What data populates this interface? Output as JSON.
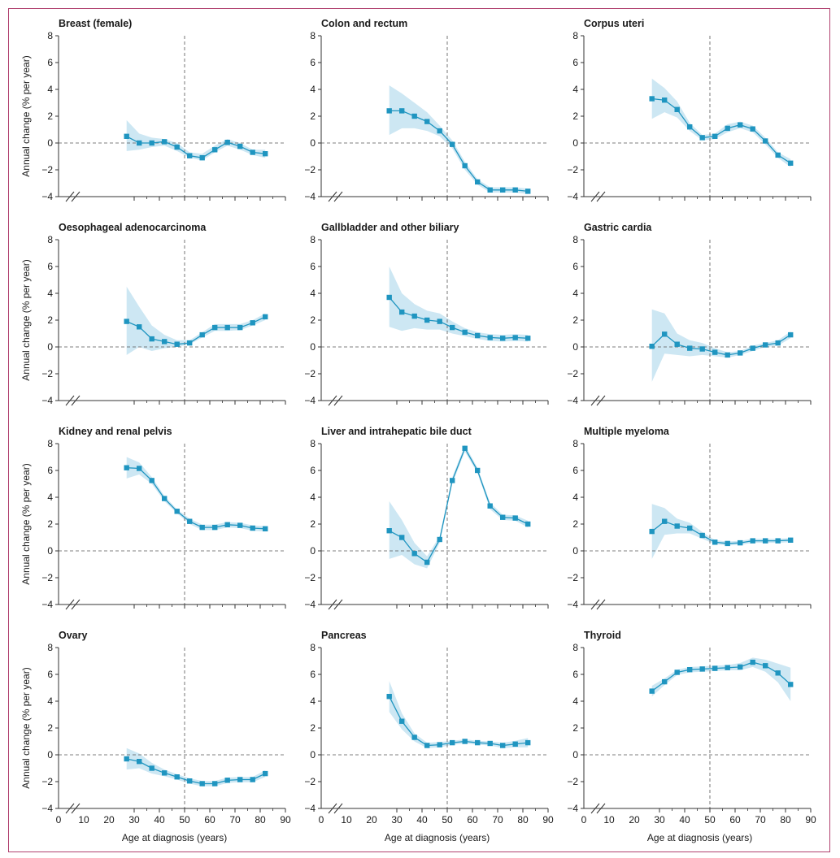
{
  "figure": {
    "x_axis_label": "Age at diagnosis (years)",
    "y_axis_label": "Annual change (% per year)",
    "colors": {
      "line": "#1f95c0",
      "band": "#cde7f3",
      "axis": "#333333",
      "frame": "#b0406e"
    }
  },
  "chart_data": [
    {
      "type": "line",
      "title": "Breast (female)",
      "xlim": [
        0,
        90
      ],
      "ylim": [
        -4,
        8
      ],
      "x": [
        27,
        32,
        37,
        42,
        47,
        52,
        57,
        62,
        67,
        72,
        77,
        82
      ],
      "y": [
        0.5,
        0.0,
        0.0,
        0.1,
        -0.3,
        -0.95,
        -1.1,
        -0.5,
        0.05,
        -0.25,
        -0.7,
        -0.8
      ],
      "lower": [
        -0.6,
        -0.5,
        -0.3,
        -0.2,
        -0.6,
        -1.1,
        -1.3,
        -0.7,
        -0.2,
        -0.5,
        -0.9,
        -1.1
      ],
      "upper": [
        1.7,
        0.7,
        0.4,
        0.3,
        0.0,
        -0.7,
        -0.8,
        -0.2,
        0.3,
        0.0,
        -0.5,
        -0.5
      ]
    },
    {
      "type": "line",
      "title": "Colon and rectum",
      "xlim": [
        0,
        90
      ],
      "ylim": [
        -4,
        8
      ],
      "x": [
        27,
        32,
        37,
        42,
        47,
        52,
        57,
        62,
        67,
        72,
        77,
        82
      ],
      "y": [
        2.4,
        2.4,
        2.0,
        1.6,
        0.9,
        -0.1,
        -1.7,
        -2.9,
        -3.5,
        -3.5,
        -3.5,
        -3.6
      ],
      "lower": [
        0.6,
        1.1,
        1.1,
        0.9,
        0.5,
        -0.4,
        -2.0,
        -3.1,
        -3.7,
        -3.7,
        -3.7,
        -3.8
      ],
      "upper": [
        4.3,
        3.7,
        3.0,
        2.3,
        1.3,
        0.2,
        -1.4,
        -2.7,
        -3.3,
        -3.3,
        -3.3,
        -3.4
      ]
    },
    {
      "type": "line",
      "title": "Corpus uteri",
      "xlim": [
        0,
        90
      ],
      "ylim": [
        -4,
        8
      ],
      "x": [
        27,
        32,
        37,
        42,
        47,
        52,
        57,
        62,
        67,
        72,
        77,
        82
      ],
      "y": [
        3.3,
        3.2,
        2.5,
        1.2,
        0.4,
        0.5,
        1.1,
        1.35,
        1.05,
        0.15,
        -0.9,
        -1.5
      ],
      "lower": [
        1.8,
        2.3,
        1.9,
        0.9,
        0.2,
        0.3,
        0.8,
        1.1,
        0.8,
        -0.1,
        -1.1,
        -1.8
      ],
      "upper": [
        4.8,
        4.1,
        3.1,
        1.5,
        0.6,
        0.7,
        1.4,
        1.6,
        1.3,
        0.4,
        -0.7,
        -1.2
      ]
    },
    {
      "type": "line",
      "title": "Oesophageal adenocarcinoma",
      "xlim": [
        0,
        90
      ],
      "ylim": [
        -4,
        8
      ],
      "x": [
        27,
        32,
        37,
        42,
        47,
        52,
        57,
        62,
        67,
        72,
        77,
        82
      ],
      "y": [
        1.9,
        1.5,
        0.6,
        0.4,
        0.2,
        0.3,
        0.9,
        1.45,
        1.45,
        1.45,
        1.8,
        2.25
      ],
      "lower": [
        -0.6,
        0.0,
        -0.3,
        -0.1,
        0.0,
        0.2,
        0.7,
        1.2,
        1.2,
        1.25,
        1.6,
        2.0
      ],
      "upper": [
        4.5,
        3.0,
        1.6,
        0.9,
        0.5,
        0.5,
        1.1,
        1.7,
        1.7,
        1.7,
        2.0,
        2.5
      ]
    },
    {
      "type": "line",
      "title": "Gallbladder and other biliary",
      "xlim": [
        0,
        90
      ],
      "ylim": [
        -4,
        8
      ],
      "x": [
        27,
        32,
        37,
        42,
        47,
        52,
        57,
        62,
        67,
        72,
        77,
        82
      ],
      "y": [
        3.7,
        2.6,
        2.3,
        2.0,
        1.9,
        1.45,
        1.1,
        0.85,
        0.7,
        0.65,
        0.7,
        0.65
      ],
      "lower": [
        1.5,
        1.2,
        1.4,
        1.3,
        1.3,
        1.0,
        0.8,
        0.6,
        0.45,
        0.4,
        0.45,
        0.4
      ],
      "upper": [
        6.0,
        4.0,
        3.2,
        2.7,
        2.5,
        1.9,
        1.4,
        1.1,
        0.95,
        0.9,
        0.95,
        0.9
      ]
    },
    {
      "type": "line",
      "title": "Gastric cardia",
      "xlim": [
        0,
        90
      ],
      "ylim": [
        -4,
        8
      ],
      "x": [
        27,
        32,
        37,
        42,
        47,
        52,
        57,
        62,
        67,
        72,
        77,
        82
      ],
      "y": [
        0.05,
        0.95,
        0.2,
        -0.1,
        -0.15,
        -0.4,
        -0.6,
        -0.45,
        -0.1,
        0.15,
        0.3,
        0.9
      ],
      "lower": [
        -2.6,
        -0.5,
        -0.6,
        -0.7,
        -0.6,
        -0.7,
        -0.8,
        -0.6,
        -0.3,
        0.0,
        0.1,
        0.65
      ],
      "upper": [
        2.8,
        2.5,
        1.0,
        0.5,
        0.3,
        -0.1,
        -0.4,
        -0.3,
        0.1,
        0.3,
        0.5,
        1.15
      ]
    },
    {
      "type": "line",
      "title": "Kidney and renal pelvis",
      "xlim": [
        0,
        90
      ],
      "ylim": [
        -4,
        8
      ],
      "x": [
        27,
        32,
        37,
        42,
        47,
        52,
        57,
        62,
        67,
        72,
        77,
        82
      ],
      "y": [
        6.2,
        6.15,
        5.25,
        3.9,
        2.95,
        2.2,
        1.75,
        1.75,
        1.95,
        1.9,
        1.7,
        1.65
      ],
      "lower": [
        5.4,
        5.7,
        5.0,
        3.7,
        2.8,
        2.0,
        1.55,
        1.55,
        1.75,
        1.7,
        1.5,
        1.45
      ],
      "upper": [
        7.0,
        6.6,
        5.5,
        4.1,
        3.1,
        2.4,
        1.95,
        1.95,
        2.15,
        2.1,
        1.9,
        1.85
      ]
    },
    {
      "type": "line",
      "title": "Liver and intrahepatic bile duct",
      "xlim": [
        0,
        90
      ],
      "ylim": [
        -4,
        8
      ],
      "x": [
        27,
        32,
        37,
        42,
        47,
        52,
        57,
        62,
        67,
        72,
        77,
        82
      ],
      "y": [
        1.5,
        1.0,
        -0.2,
        -0.85,
        0.85,
        5.25,
        7.65,
        6.0,
        3.35,
        2.5,
        2.45,
        2.0
      ],
      "lower": [
        -0.6,
        -0.3,
        -1.0,
        -1.3,
        0.6,
        5.0,
        7.4,
        5.8,
        3.1,
        2.3,
        2.25,
        1.75
      ],
      "upper": [
        3.7,
        2.3,
        0.6,
        -0.4,
        1.1,
        5.5,
        7.9,
        6.2,
        3.6,
        2.7,
        2.65,
        2.25
      ]
    },
    {
      "type": "line",
      "title": "Multiple myeloma",
      "xlim": [
        0,
        90
      ],
      "ylim": [
        -4,
        8
      ],
      "x": [
        27,
        32,
        37,
        42,
        47,
        52,
        57,
        62,
        67,
        72,
        77,
        82
      ],
      "y": [
        1.45,
        2.2,
        1.85,
        1.7,
        1.15,
        0.65,
        0.55,
        0.6,
        0.75,
        0.75,
        0.75,
        0.8
      ],
      "lower": [
        -0.6,
        1.2,
        1.3,
        1.3,
        0.9,
        0.5,
        0.4,
        0.45,
        0.6,
        0.6,
        0.6,
        0.65
      ],
      "upper": [
        3.5,
        3.2,
        2.4,
        2.1,
        1.4,
        0.8,
        0.7,
        0.75,
        0.9,
        0.9,
        0.9,
        0.95
      ]
    },
    {
      "type": "line",
      "title": "Ovary",
      "xlim": [
        0,
        90
      ],
      "ylim": [
        -4,
        8
      ],
      "x": [
        27,
        32,
        37,
        42,
        47,
        52,
        57,
        62,
        67,
        72,
        77,
        82
      ],
      "y": [
        -0.3,
        -0.5,
        -1.0,
        -1.35,
        -1.65,
        -1.95,
        -2.15,
        -2.15,
        -1.9,
        -1.85,
        -1.85,
        -1.4
      ],
      "lower": [
        -1.1,
        -1.0,
        -1.4,
        -1.6,
        -1.85,
        -2.15,
        -2.35,
        -2.35,
        -2.1,
        -2.05,
        -2.05,
        -1.65
      ],
      "upper": [
        0.5,
        0.1,
        -0.6,
        -1.1,
        -1.45,
        -1.75,
        -1.95,
        -1.95,
        -1.7,
        -1.65,
        -1.65,
        -1.15
      ]
    },
    {
      "type": "line",
      "title": "Pancreas",
      "xlim": [
        0,
        90
      ],
      "ylim": [
        -4,
        8
      ],
      "x": [
        27,
        32,
        37,
        42,
        47,
        52,
        57,
        62,
        67,
        72,
        77,
        82
      ],
      "y": [
        4.35,
        2.5,
        1.3,
        0.7,
        0.75,
        0.9,
        1.0,
        0.9,
        0.85,
        0.7,
        0.8,
        0.9
      ],
      "lower": [
        3.2,
        1.9,
        1.0,
        0.5,
        0.55,
        0.75,
        0.85,
        0.75,
        0.7,
        0.5,
        0.55,
        0.55
      ],
      "upper": [
        5.5,
        3.1,
        1.6,
        0.9,
        0.95,
        1.05,
        1.15,
        1.05,
        1.0,
        0.9,
        1.05,
        1.25
      ]
    },
    {
      "type": "line",
      "title": "Thyroid",
      "xlim": [
        0,
        90
      ],
      "ylim": [
        -4,
        8
      ],
      "x": [
        27,
        32,
        37,
        42,
        47,
        52,
        57,
        62,
        67,
        72,
        77,
        82
      ],
      "y": [
        4.75,
        5.45,
        6.15,
        6.35,
        6.4,
        6.45,
        6.5,
        6.55,
        6.9,
        6.65,
        6.1,
        5.25
      ],
      "lower": [
        4.35,
        5.2,
        5.95,
        6.15,
        6.2,
        6.25,
        6.3,
        6.3,
        6.55,
        6.2,
        5.4,
        4.0
      ],
      "upper": [
        5.15,
        5.7,
        6.35,
        6.55,
        6.6,
        6.65,
        6.7,
        6.85,
        7.25,
        7.1,
        6.8,
        6.5
      ]
    }
  ]
}
